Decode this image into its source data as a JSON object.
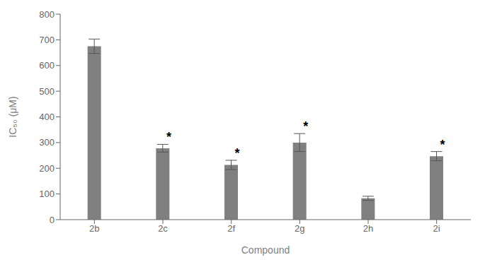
{
  "chart_data": {
    "type": "bar",
    "categories": [
      "2b",
      "2c",
      "2f",
      "2g",
      "2h",
      "2i"
    ],
    "values": [
      675,
      278,
      213,
      300,
      83,
      247
    ],
    "errors": [
      28,
      15,
      18,
      35,
      8,
      18
    ],
    "color": "#808080",
    "xlabel": "Compound",
    "ylabel": "IC₅₀ (μM)",
    "ylim": [
      0,
      800
    ],
    "yticks": [
      0,
      100,
      200,
      300,
      400,
      500,
      600,
      700,
      800
    ],
    "grid": false,
    "annotations": [
      {
        "category": "2c",
        "text": "*"
      },
      {
        "category": "2f",
        "text": "*"
      },
      {
        "category": "2g",
        "text": "*"
      },
      {
        "category": "2i",
        "text": "*"
      }
    ]
  }
}
